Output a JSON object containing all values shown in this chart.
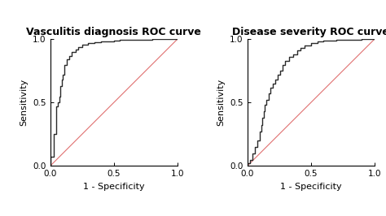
{
  "title1": "Vasculitis diagnosis ROC curve",
  "title2": "Disease severity ROC curve",
  "xlabel": "1 - Specificity",
  "ylabel": "Sensitivity",
  "xlim": [
    0.0,
    1.0
  ],
  "ylim": [
    0.0,
    1.0
  ],
  "xticks": [
    0.0,
    0.5,
    1.0
  ],
  "yticks": [
    0.0,
    0.5,
    1.0
  ],
  "background_color": "#ffffff",
  "roc_color": "#2a2a2a",
  "diag_color": "#e07070",
  "title_fontsize": 9,
  "label_fontsize": 8,
  "tick_fontsize": 7.5,
  "roc1_x": [
    0.0,
    0.0,
    0.03,
    0.03,
    0.05,
    0.05,
    0.06,
    0.06,
    0.07,
    0.07,
    0.08,
    0.08,
    0.09,
    0.09,
    0.1,
    0.1,
    0.11,
    0.11,
    0.13,
    0.13,
    0.15,
    0.15,
    0.17,
    0.17,
    0.2,
    0.2,
    0.22,
    0.22,
    0.25,
    0.25,
    0.3,
    0.3,
    0.35,
    0.35,
    0.4,
    0.4,
    0.45,
    0.45,
    0.5,
    0.5,
    0.55,
    0.55,
    0.6,
    0.6,
    0.7,
    0.7,
    0.8,
    0.8,
    0.9,
    0.9,
    1.0
  ],
  "roc1_y": [
    0.0,
    0.07,
    0.07,
    0.25,
    0.25,
    0.47,
    0.47,
    0.5,
    0.5,
    0.55,
    0.55,
    0.63,
    0.63,
    0.68,
    0.68,
    0.72,
    0.72,
    0.8,
    0.8,
    0.84,
    0.84,
    0.87,
    0.87,
    0.9,
    0.9,
    0.92,
    0.92,
    0.94,
    0.94,
    0.96,
    0.96,
    0.97,
    0.97,
    0.975,
    0.975,
    0.98,
    0.98,
    0.985,
    0.985,
    0.99,
    0.99,
    0.993,
    0.993,
    0.995,
    0.995,
    0.997,
    0.997,
    0.999,
    0.999,
    1.0,
    1.0
  ],
  "roc2_x": [
    0.0,
    0.0,
    0.02,
    0.02,
    0.04,
    0.04,
    0.06,
    0.06,
    0.08,
    0.08,
    0.1,
    0.1,
    0.11,
    0.11,
    0.12,
    0.12,
    0.13,
    0.13,
    0.14,
    0.14,
    0.15,
    0.15,
    0.17,
    0.17,
    0.18,
    0.18,
    0.2,
    0.2,
    0.22,
    0.22,
    0.24,
    0.24,
    0.26,
    0.26,
    0.28,
    0.28,
    0.3,
    0.3,
    0.33,
    0.33,
    0.36,
    0.36,
    0.39,
    0.39,
    0.42,
    0.42,
    0.45,
    0.45,
    0.5,
    0.5,
    0.55,
    0.55,
    0.6,
    0.6,
    0.7,
    0.7,
    0.8,
    0.8,
    0.9,
    0.9,
    1.0
  ],
  "roc2_y": [
    0.0,
    0.02,
    0.02,
    0.05,
    0.05,
    0.1,
    0.1,
    0.15,
    0.15,
    0.2,
    0.2,
    0.27,
    0.27,
    0.32,
    0.32,
    0.38,
    0.38,
    0.43,
    0.43,
    0.48,
    0.48,
    0.52,
    0.52,
    0.57,
    0.57,
    0.62,
    0.62,
    0.65,
    0.65,
    0.68,
    0.68,
    0.72,
    0.72,
    0.75,
    0.75,
    0.8,
    0.8,
    0.83,
    0.83,
    0.86,
    0.86,
    0.88,
    0.88,
    0.91,
    0.91,
    0.93,
    0.93,
    0.95,
    0.95,
    0.97,
    0.97,
    0.98,
    0.98,
    0.99,
    0.99,
    0.995,
    0.995,
    0.998,
    0.998,
    1.0,
    1.0
  ]
}
